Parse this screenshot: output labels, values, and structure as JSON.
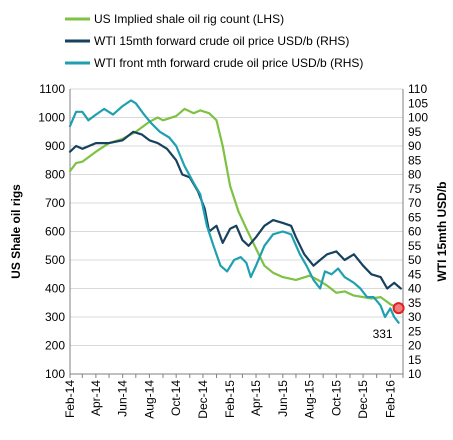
{
  "chart_data": {
    "type": "line",
    "x_labels": [
      "Feb-14",
      "Apr-14",
      "Jun-14",
      "Aug-14",
      "Oct-14",
      "Dec-14",
      "Feb-15",
      "Apr-15",
      "Jun-15",
      "Aug-15",
      "Oct-15",
      "Dec-15",
      "Feb-16"
    ],
    "x_range": [
      "2014-02-01",
      "2016-03-01"
    ],
    "y_left": {
      "label": "US Shale oil rigs",
      "range": [
        100,
        1100
      ],
      "ticks": [
        100,
        200,
        300,
        400,
        500,
        600,
        700,
        800,
        900,
        1000,
        1100
      ]
    },
    "y_right": {
      "label": "WTI 15mth USD/b",
      "range": [
        10,
        110
      ],
      "ticks": [
        10,
        15,
        20,
        25,
        30,
        35,
        40,
        45,
        50,
        55,
        60,
        65,
        70,
        75,
        80,
        85,
        90,
        95,
        100,
        105,
        110
      ]
    },
    "grid": true,
    "legend_position": "top",
    "series": [
      {
        "name": "US Implied shale oil rig count (LHS)",
        "axis": "left",
        "color": "#7dc242",
        "points": [
          [
            "2014-02-01",
            812
          ],
          [
            "2014-02-15",
            840
          ],
          [
            "2014-03-01",
            845
          ],
          [
            "2014-04-01",
            880
          ],
          [
            "2014-05-01",
            910
          ],
          [
            "2014-06-01",
            925
          ],
          [
            "2014-07-01",
            950
          ],
          [
            "2014-08-01",
            985
          ],
          [
            "2014-08-20",
            1000
          ],
          [
            "2014-09-01",
            990
          ],
          [
            "2014-10-01",
            1005
          ],
          [
            "2014-10-20",
            1030
          ],
          [
            "2014-11-10",
            1015
          ],
          [
            "2014-11-25",
            1025
          ],
          [
            "2014-12-15",
            1015
          ],
          [
            "2015-01-01",
            990
          ],
          [
            "2015-01-15",
            900
          ],
          [
            "2015-02-01",
            760
          ],
          [
            "2015-02-20",
            670
          ],
          [
            "2015-03-10",
            610
          ],
          [
            "2015-04-01",
            540
          ],
          [
            "2015-04-20",
            480
          ],
          [
            "2015-05-10",
            455
          ],
          [
            "2015-06-01",
            440
          ],
          [
            "2015-07-01",
            430
          ],
          [
            "2015-08-01",
            445
          ],
          [
            "2015-08-20",
            430
          ],
          [
            "2015-09-10",
            410
          ],
          [
            "2015-10-01",
            385
          ],
          [
            "2015-10-20",
            390
          ],
          [
            "2015-11-10",
            375
          ],
          [
            "2015-12-01",
            370
          ],
          [
            "2015-12-20",
            365
          ],
          [
            "2016-01-10",
            370
          ],
          [
            "2016-02-01",
            345
          ],
          [
            "2016-02-20",
            331
          ]
        ]
      },
      {
        "name": "WTI 15mth forward crude oil price USD/b (RHS)",
        "axis": "right",
        "color": "#17425f",
        "points": [
          [
            "2014-02-01",
            88
          ],
          [
            "2014-02-15",
            90
          ],
          [
            "2014-03-01",
            89
          ],
          [
            "2014-04-01",
            91
          ],
          [
            "2014-05-01",
            91
          ],
          [
            "2014-06-01",
            92
          ],
          [
            "2014-06-25",
            95
          ],
          [
            "2014-07-15",
            94
          ],
          [
            "2014-08-01",
            92
          ],
          [
            "2014-08-20",
            91
          ],
          [
            "2014-09-10",
            89
          ],
          [
            "2014-10-01",
            85
          ],
          [
            "2014-10-15",
            80
          ],
          [
            "2014-11-01",
            79
          ],
          [
            "2014-11-20",
            74
          ],
          [
            "2014-12-05",
            68
          ],
          [
            "2014-12-15",
            60
          ],
          [
            "2015-01-01",
            62
          ],
          [
            "2015-01-15",
            56
          ],
          [
            "2015-02-01",
            61
          ],
          [
            "2015-02-15",
            62
          ],
          [
            "2015-03-01",
            57
          ],
          [
            "2015-03-15",
            55
          ],
          [
            "2015-04-01",
            58
          ],
          [
            "2015-04-20",
            62
          ],
          [
            "2015-05-10",
            64
          ],
          [
            "2015-06-01",
            63
          ],
          [
            "2015-06-20",
            62
          ],
          [
            "2015-07-01",
            58
          ],
          [
            "2015-07-20",
            52
          ],
          [
            "2015-08-10",
            48
          ],
          [
            "2015-08-25",
            50
          ],
          [
            "2015-09-10",
            52
          ],
          [
            "2015-10-01",
            53
          ],
          [
            "2015-10-20",
            50
          ],
          [
            "2015-11-10",
            52
          ],
          [
            "2015-12-01",
            48
          ],
          [
            "2015-12-20",
            45
          ],
          [
            "2016-01-10",
            44
          ],
          [
            "2016-01-25",
            40
          ],
          [
            "2016-02-10",
            42
          ],
          [
            "2016-02-25",
            40
          ]
        ]
      },
      {
        "name": "WTI front mth forward crude oil price USD/b (RHS)",
        "axis": "right",
        "color": "#1fa0b0",
        "points": [
          [
            "2014-02-01",
            97
          ],
          [
            "2014-02-15",
            102
          ],
          [
            "2014-03-01",
            102
          ],
          [
            "2014-03-15",
            99
          ],
          [
            "2014-04-01",
            101
          ],
          [
            "2014-04-20",
            103
          ],
          [
            "2014-05-10",
            101
          ],
          [
            "2014-06-01",
            104
          ],
          [
            "2014-06-20",
            106
          ],
          [
            "2014-07-01",
            105
          ],
          [
            "2014-07-20",
            101
          ],
          [
            "2014-08-05",
            98
          ],
          [
            "2014-08-25",
            95
          ],
          [
            "2014-09-15",
            93
          ],
          [
            "2014-10-01",
            90
          ],
          [
            "2014-10-20",
            83
          ],
          [
            "2014-11-10",
            77
          ],
          [
            "2014-11-25",
            73
          ],
          [
            "2014-12-10",
            62
          ],
          [
            "2014-12-25",
            55
          ],
          [
            "2015-01-10",
            48
          ],
          [
            "2015-01-25",
            46
          ],
          [
            "2015-02-10",
            50
          ],
          [
            "2015-02-25",
            51
          ],
          [
            "2015-03-10",
            49
          ],
          [
            "2015-03-20",
            44
          ],
          [
            "2015-04-01",
            48
          ],
          [
            "2015-04-20",
            55
          ],
          [
            "2015-05-10",
            59
          ],
          [
            "2015-06-01",
            60
          ],
          [
            "2015-06-20",
            59
          ],
          [
            "2015-07-10",
            52
          ],
          [
            "2015-07-25",
            48
          ],
          [
            "2015-08-10",
            43
          ],
          [
            "2015-08-25",
            40
          ],
          [
            "2015-09-05",
            46
          ],
          [
            "2015-09-20",
            45
          ],
          [
            "2015-10-05",
            47
          ],
          [
            "2015-10-20",
            44
          ],
          [
            "2015-11-10",
            42
          ],
          [
            "2015-11-25",
            40
          ],
          [
            "2015-12-10",
            37
          ],
          [
            "2015-12-25",
            37
          ],
          [
            "2016-01-10",
            34
          ],
          [
            "2016-01-20",
            30
          ],
          [
            "2016-02-01",
            33
          ],
          [
            "2016-02-10",
            30
          ],
          [
            "2016-02-20",
            28
          ]
        ]
      }
    ],
    "annotation": {
      "text": "331",
      "date": "2016-02-20",
      "value": 331,
      "axis": "left",
      "marker_fill": "#f08080",
      "marker_stroke": "#e02020"
    }
  }
}
